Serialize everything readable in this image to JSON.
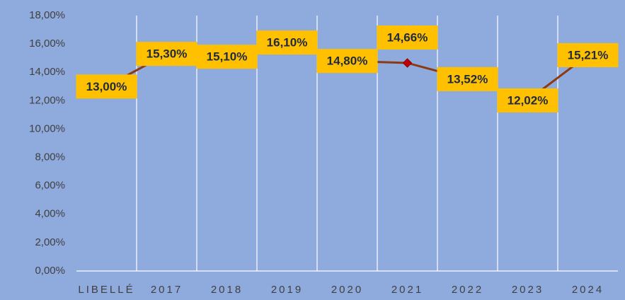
{
  "chart_data": {
    "type": "line",
    "categories": [
      "LIBELLÉ",
      "2017",
      "2018",
      "2019",
      "2020",
      "2021",
      "2022",
      "2023",
      "2024"
    ],
    "series": [
      {
        "color": "#8b3a12",
        "values": [
          13.0,
          15.3,
          15.1,
          16.1,
          14.8,
          14.66,
          13.52,
          12.02,
          15.21
        ],
        "value_labels": [
          "13,00%",
          "15,30%",
          "15,10%",
          "16,10%",
          "14,80%",
          "14,66%",
          "13,52%",
          "12,02%",
          "15,21%"
        ]
      }
    ],
    "ylim": [
      0,
      18
    ],
    "yticks": [
      {
        "value": 0,
        "label": "0,00%"
      },
      {
        "value": 2,
        "label": "2,00%"
      },
      {
        "value": 4,
        "label": "4,00%"
      },
      {
        "value": 6,
        "label": "6,00%"
      },
      {
        "value": 8,
        "label": "8,00%"
      },
      {
        "value": 10,
        "label": "10,00%"
      },
      {
        "value": 12,
        "label": "12,00%"
      },
      {
        "value": 14,
        "label": "14,00%"
      },
      {
        "value": 16,
        "label": "16,00%"
      },
      {
        "value": 18,
        "label": "18,00%"
      }
    ],
    "grid": true
  }
}
